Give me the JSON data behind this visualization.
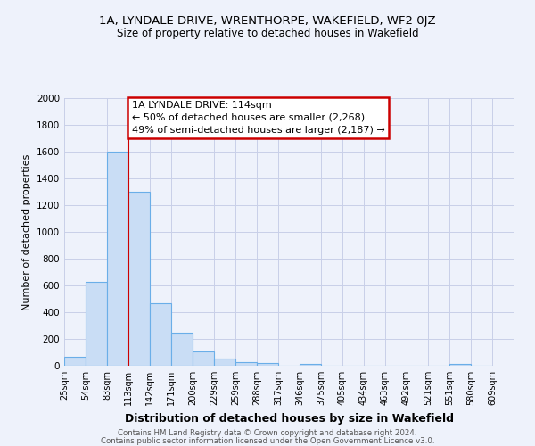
{
  "title": "1A, LYNDALE DRIVE, WRENTHORPE, WAKEFIELD, WF2 0JZ",
  "subtitle": "Size of property relative to detached houses in Wakefield",
  "xlabel": "Distribution of detached houses by size in Wakefield",
  "ylabel": "Number of detached properties",
  "bar_values": [
    65,
    630,
    1600,
    1300,
    470,
    250,
    105,
    55,
    30,
    20,
    0,
    15,
    0,
    0,
    0,
    0,
    0,
    0,
    15,
    0
  ],
  "bar_labels": [
    "25sqm",
    "54sqm",
    "83sqm",
    "113sqm",
    "142sqm",
    "171sqm",
    "200sqm",
    "229sqm",
    "259sqm",
    "288sqm",
    "317sqm",
    "346sqm",
    "375sqm",
    "405sqm",
    "434sqm",
    "463sqm",
    "492sqm",
    "521sqm",
    "551sqm",
    "580sqm",
    "609sqm"
  ],
  "bar_color": "#c9ddf5",
  "bar_edge_color": "#6aaee8",
  "background_color": "#eef2fb",
  "grid_color": "#c8cfe8",
  "vline_color": "#cc0000",
  "annotation_title": "1A LYNDALE DRIVE: 114sqm",
  "annotation_line1": "← 50% of detached houses are smaller (2,268)",
  "annotation_line2": "49% of semi-detached houses are larger (2,187) →",
  "annotation_box_color": "#ffffff",
  "annotation_box_edge": "#cc0000",
  "ylim": [
    0,
    2000
  ],
  "yticks": [
    0,
    200,
    400,
    600,
    800,
    1000,
    1200,
    1400,
    1600,
    1800,
    2000
  ],
  "footer1": "Contains HM Land Registry data © Crown copyright and database right 2024.",
  "footer2": "Contains public sector information licensed under the Open Government Licence v3.0.",
  "title_fontsize": 9.5,
  "subtitle_fontsize": 8.5,
  "xlabel_fontsize": 9,
  "ylabel_fontsize": 8
}
